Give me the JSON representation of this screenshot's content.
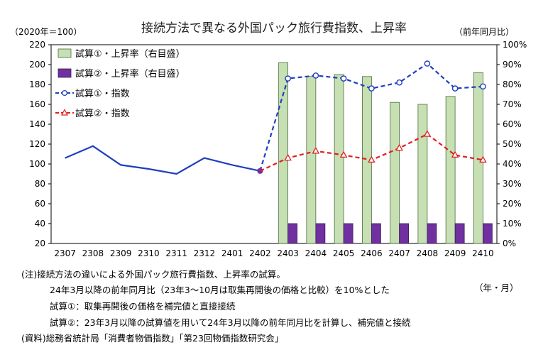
{
  "chart_data": {
    "type": "bar+line",
    "title": "接続方法で異なる外国パック旅行費指数、上昇率",
    "left_unit": "（2020年＝100）",
    "right_unit": "（前年同月比）",
    "x_unit": "（年・月）",
    "categories": [
      "2307",
      "2308",
      "2309",
      "2310",
      "2311",
      "2312",
      "2401",
      "2402",
      "2403",
      "2404",
      "2405",
      "2406",
      "2407",
      "2408",
      "2409",
      "2410"
    ],
    "y_left": {
      "min": 20,
      "max": 220,
      "step": 20,
      "ticks": [
        "20",
        "40",
        "60",
        "80",
        "100",
        "120",
        "140",
        "160",
        "180",
        "200",
        "220"
      ]
    },
    "y_right": {
      "min": 0,
      "max": 100,
      "step": 10,
      "ticks": [
        "0%",
        "10%",
        "20%",
        "30%",
        "40%",
        "50%",
        "60%",
        "70%",
        "80%",
        "90%",
        "100%"
      ]
    },
    "grid": false,
    "legend_position": "top-left",
    "series": [
      {
        "name": "試算①・上昇率（右目盛）",
        "kind": "bar",
        "axis": "right",
        "color": "#c6e0b4",
        "stroke": "#4d6b3a",
        "values": [
          null,
          null,
          null,
          null,
          null,
          null,
          null,
          null,
          91,
          84,
          85,
          84,
          71,
          70,
          74,
          86
        ]
      },
      {
        "name": "試算②・上昇率（右目盛）",
        "kind": "bar",
        "axis": "right",
        "color": "#7030a0",
        "stroke": "#3f1a5c",
        "values": [
          null,
          null,
          null,
          null,
          null,
          null,
          null,
          null,
          10,
          10,
          10,
          10,
          10,
          10,
          10,
          10
        ]
      },
      {
        "name": "試算①・指数",
        "kind": "line",
        "axis": "left",
        "color": "#1f3fbf",
        "values": [
          106,
          118,
          99,
          95,
          90,
          106,
          99,
          93,
          186,
          189,
          186,
          176,
          182,
          201,
          176,
          178
        ],
        "dashed_from_index": 7
      },
      {
        "name": "試算②・指数",
        "kind": "line",
        "axis": "left",
        "color": "#e02020",
        "values": [
          null,
          null,
          null,
          null,
          null,
          null,
          null,
          93,
          106,
          113,
          109,
          104,
          116,
          130,
          109,
          104
        ],
        "dashed_from_index": 7
      }
    ]
  },
  "notes": {
    "line1": "(注)接続方法の違いによる外国パック旅行費指数、上昇率の試算。",
    "line2": "24年3月以降の前年同月比（23年3～10月は取集再開後の価格と比較）を10%とした",
    "line3": "試算①：取集再開後の価格を補完値と直接接続",
    "line4": "試算②：23年3月以降の試算値を用いて24年3月以降の前年同月比を計算し、補完値と接続",
    "line5": "(資料)総務省統計局「消費者物価指数」「第23回物価指数研究会」"
  }
}
